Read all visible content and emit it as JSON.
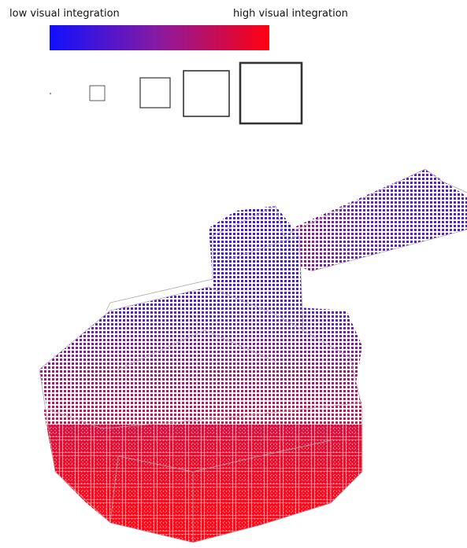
{
  "legend": {
    "low_label": "low visual integration",
    "high_label": "high visual integration"
  }
}
